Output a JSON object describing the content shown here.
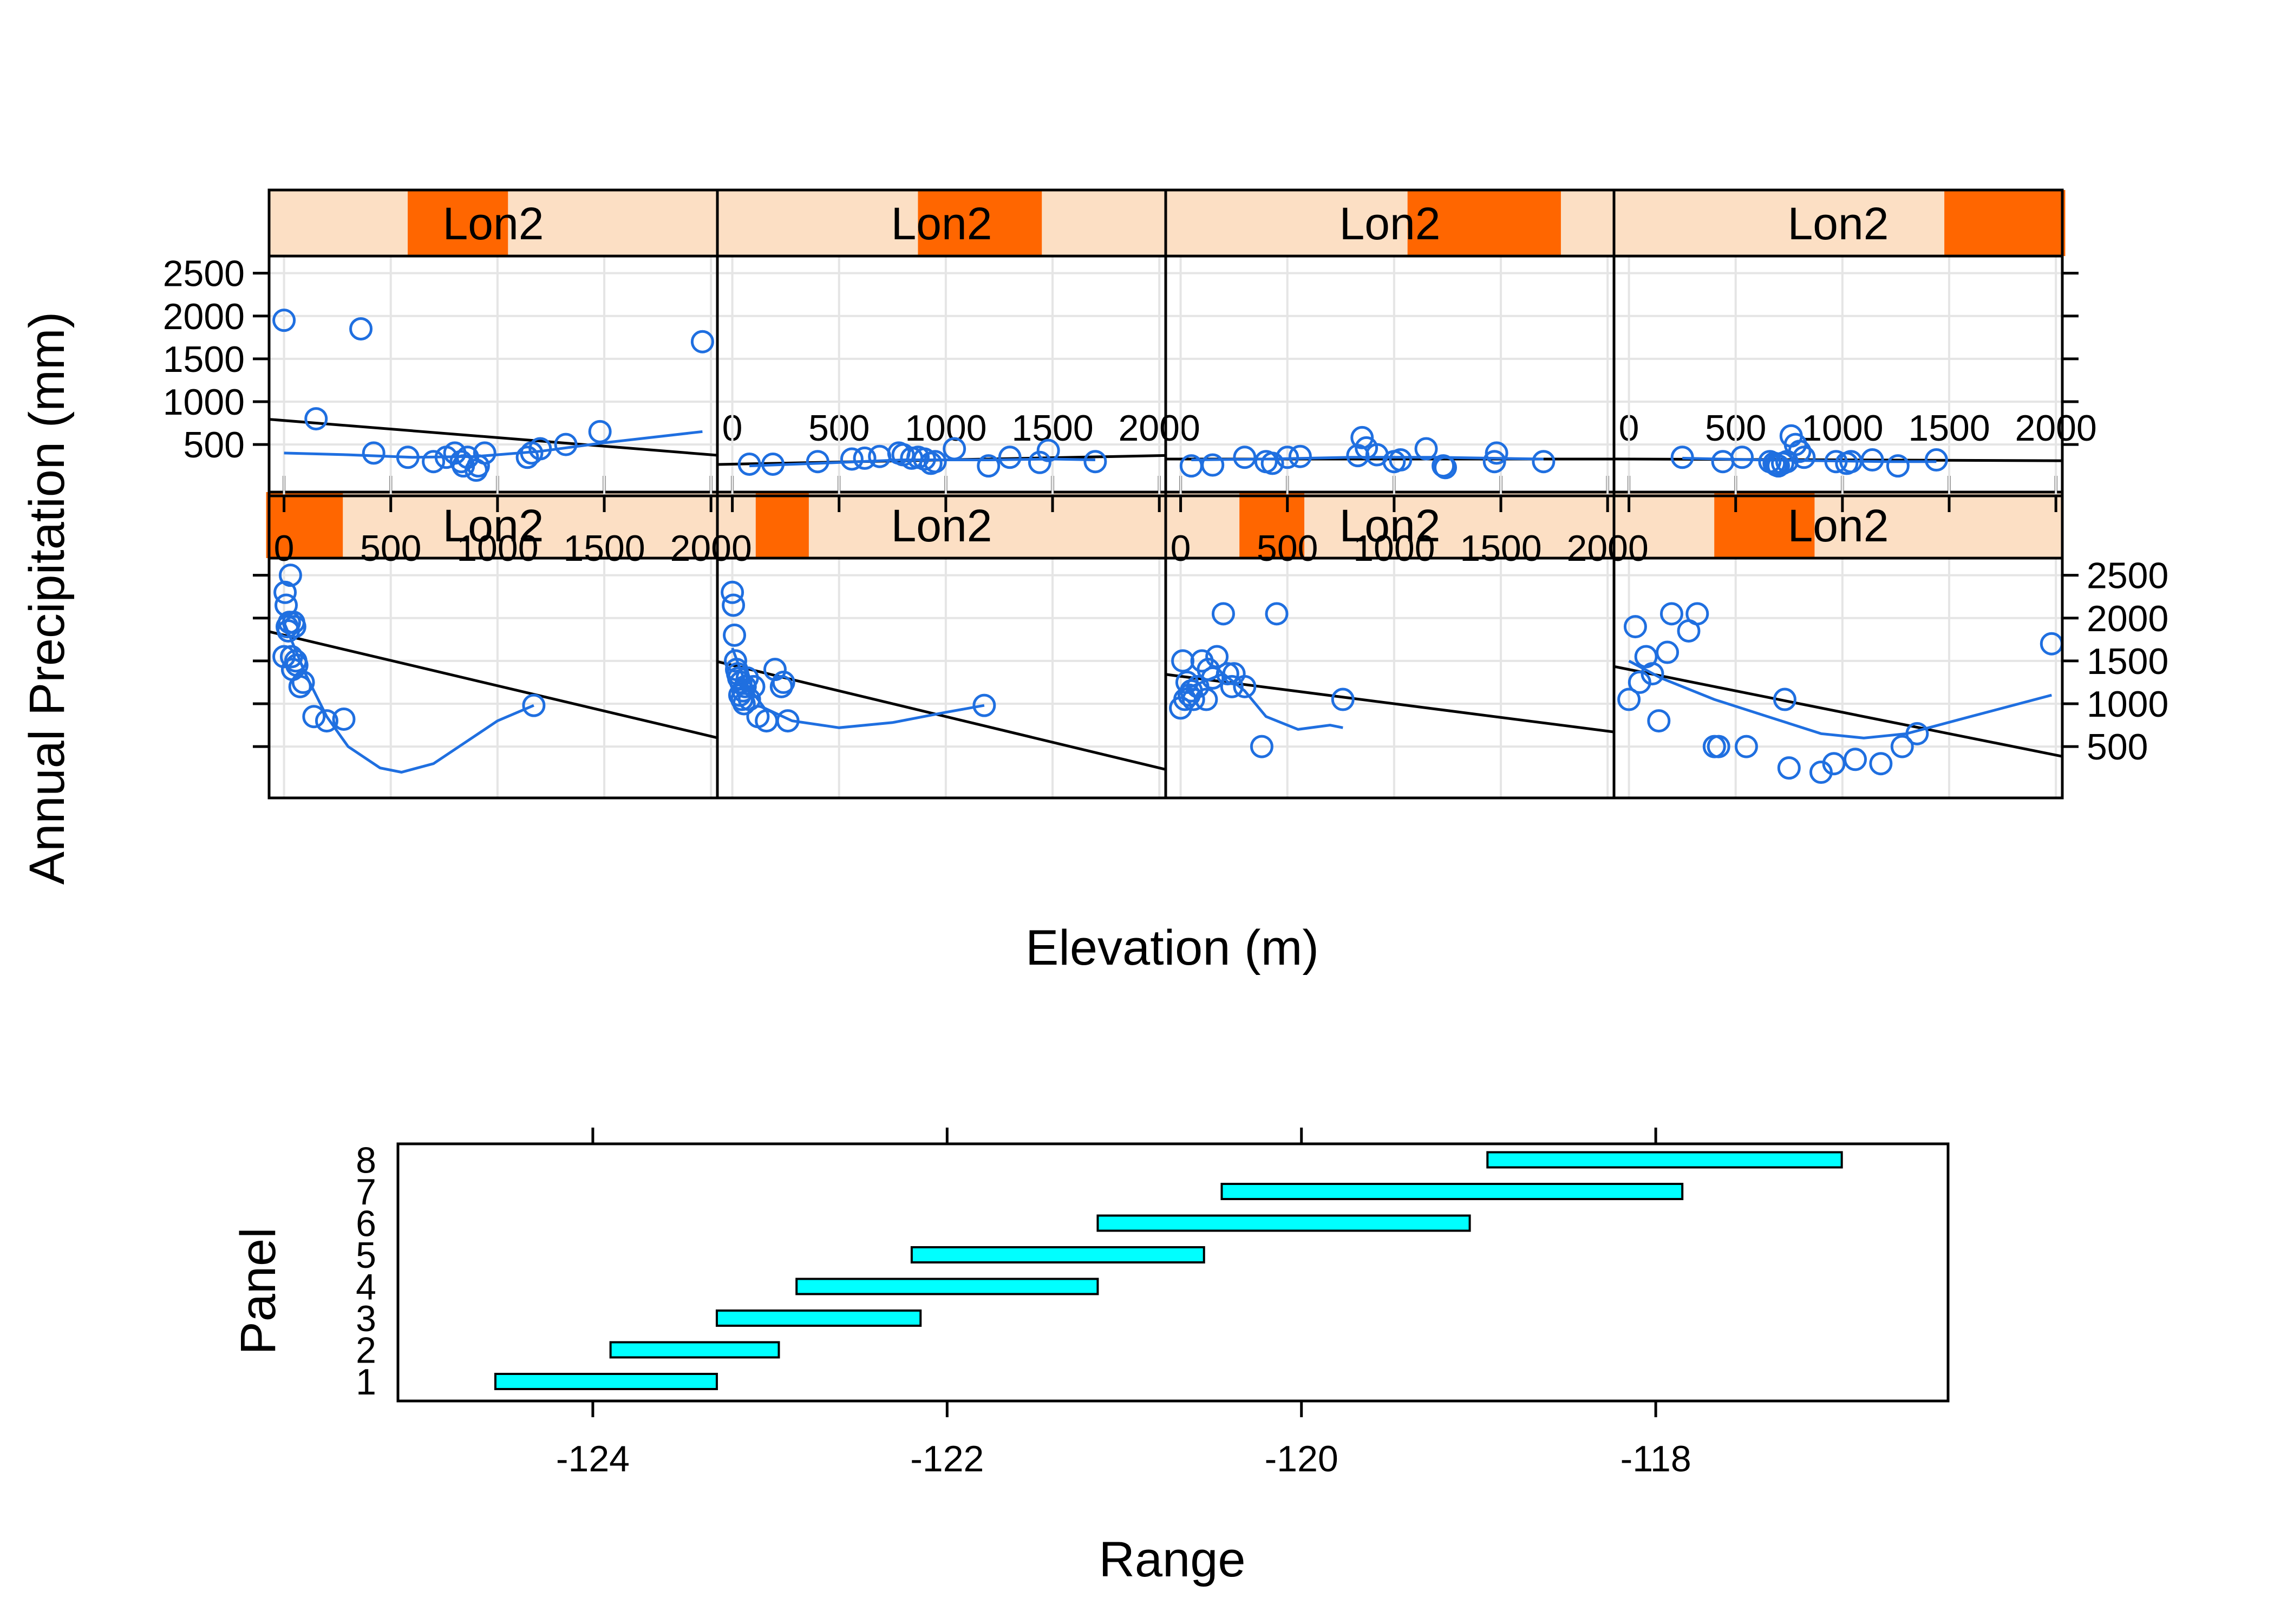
{
  "chart_data": [
    {
      "type": "scatter",
      "layout": "coplot",
      "xlabel": "Elevation (m)",
      "ylabel": "Annual Precipitation (mm)",
      "strip_label": "Lon2",
      "xlim": [
        -70,
        2030
      ],
      "ylim": [
        -100,
        2700
      ],
      "x_ticks": [
        0,
        500,
        1000,
        1500,
        2000
      ],
      "y_ticks": [
        500,
        1000,
        1500,
        2000,
        2500
      ],
      "grid": true,
      "colors": {
        "points": "#1f6fe0",
        "smooth": "#1f6fe0",
        "regression": "#000000",
        "strip_bg": "#fcdfc4",
        "strip_active": "#ff6600",
        "grid": "#e5e5e5"
      },
      "panels": [
        {
          "panel": 1,
          "lon_range": [
            -124.6,
            -123.3
          ],
          "x": [
            0,
            5,
            10,
            15,
            20,
            25,
            30,
            35,
            40,
            45,
            50,
            55,
            60,
            75,
            90,
            140,
            200,
            280,
            1170
          ],
          "y": [
            1550,
            2300,
            2150,
            1900,
            1850,
            1950,
            2500,
            1550,
            1400,
            1950,
            1900,
            1500,
            1450,
            1200,
            1250,
            850,
            800,
            820,
            980
          ],
          "regression": [
            1800,
            -0.59
          ],
          "smooth": [
            [
              0,
              1950
            ],
            [
              50,
              1650
            ],
            [
              100,
              1350
            ],
            [
              200,
              850
            ],
            [
              300,
              500
            ],
            [
              450,
              250
            ],
            [
              550,
              200
            ],
            [
              700,
              300
            ],
            [
              850,
              550
            ],
            [
              1000,
              800
            ],
            [
              1170,
              980
            ]
          ]
        },
        {
          "panel": 2,
          "lon_range": [
            -123.9,
            -123.0
          ],
          "x": [
            0,
            5,
            10,
            15,
            20,
            25,
            30,
            35,
            40,
            45,
            50,
            55,
            60,
            70,
            80,
            100,
            120,
            160,
            200,
            230,
            240,
            260,
            1180
          ],
          "y": [
            2300,
            2150,
            1800,
            1500,
            1400,
            1350,
            1300,
            1100,
            1250,
            1050,
            1150,
            1000,
            1200,
            1300,
            1050,
            1200,
            850,
            800,
            1400,
            1200,
            1250,
            800,
            980
          ],
          "regression": [
            1450,
            -0.6
          ],
          "smooth": [
            [
              0,
              1650
            ],
            [
              60,
              1250
            ],
            [
              150,
              950
            ],
            [
              280,
              800
            ],
            [
              500,
              720
            ],
            [
              750,
              780
            ],
            [
              1000,
              900
            ],
            [
              1180,
              980
            ]
          ]
        },
        {
          "panel": 3,
          "lon_range": [
            -123.3,
            -122.2
          ],
          "x": [
            0,
            10,
            20,
            30,
            40,
            50,
            60,
            80,
            100,
            120,
            130,
            150,
            170,
            200,
            220,
            240,
            250,
            300,
            380,
            450,
            760
          ],
          "y": [
            950,
            1500,
            1050,
            1250,
            1100,
            1150,
            1050,
            1200,
            1500,
            1050,
            1400,
            1300,
            1550,
            2050,
            1350,
            1200,
            1350,
            1200,
            500,
            2050,
            1050
          ],
          "regression": [
            1320,
            -0.32
          ],
          "smooth": [
            [
              0,
              1150
            ],
            [
              100,
              1250
            ],
            [
              200,
              1350
            ],
            [
              300,
              1150
            ],
            [
              400,
              850
            ],
            [
              550,
              700
            ],
            [
              700,
              750
            ],
            [
              760,
              720
            ]
          ]
        },
        {
          "panel": 4,
          "lon_range": [
            -122.85,
            -121.15
          ],
          "x": [
            0,
            30,
            50,
            80,
            110,
            140,
            180,
            200,
            280,
            320,
            400,
            420,
            550,
            730,
            750,
            900,
            960,
            1060,
            1180,
            1280,
            1350,
            1980
          ],
          "y": [
            1050,
            1900,
            1250,
            1550,
            1350,
            800,
            1600,
            2050,
            1850,
            2050,
            500,
            500,
            500,
            1050,
            250,
            200,
            300,
            350,
            300,
            500,
            650,
            1700
          ],
          "regression": [
            1400,
            -0.5
          ],
          "smooth": [
            [
              0,
              1500
            ],
            [
              150,
              1300
            ],
            [
              400,
              1050
            ],
            [
              650,
              850
            ],
            [
              900,
              650
            ],
            [
              1100,
              600
            ],
            [
              1300,
              650
            ],
            [
              1600,
              850
            ],
            [
              1980,
              1100
            ]
          ]
        },
        {
          "panel": 5,
          "lon_range": [
            -122.2,
            -120.5
          ],
          "x": [
            0,
            150,
            360,
            420,
            580,
            700,
            760,
            800,
            830,
            840,
            860,
            900,
            910,
            940,
            1140,
            1160,
            1200,
            1320,
            1480,
            1960
          ],
          "y": [
            1950,
            800,
            1850,
            400,
            350,
            300,
            350,
            400,
            300,
            250,
            350,
            200,
            250,
            400,
            350,
            400,
            450,
            500,
            650,
            1700
          ],
          "regression": [
            780,
            -0.2
          ],
          "smooth": [
            [
              0,
              400
            ],
            [
              300,
              380
            ],
            [
              600,
              350
            ],
            [
              900,
              360
            ],
            [
              1200,
              420
            ],
            [
              1500,
              520
            ],
            [
              1960,
              650
            ]
          ]
        },
        {
          "panel": 6,
          "lon_range": [
            -121.15,
            -119.05
          ],
          "x": [
            80,
            190,
            400,
            560,
            620,
            690,
            780,
            800,
            840,
            870,
            900,
            930,
            950,
            1040,
            1200,
            1300,
            1440,
            1480,
            1700
          ],
          "y": [
            270,
            270,
            300,
            330,
            340,
            360,
            400,
            380,
            340,
            350,
            330,
            280,
            300,
            450,
            250,
            350,
            290,
            430,
            300
          ],
          "regression": [
            270,
            0.05
          ],
          "smooth": [
            [
              80,
              250
            ],
            [
              400,
              280
            ],
            [
              800,
              320
            ],
            [
              1200,
              320
            ],
            [
              1500,
              330
            ],
            [
              1700,
              320
            ]
          ]
        },
        {
          "panel": 7,
          "lon_range": [
            -120.45,
            -117.85
          ],
          "x": [
            50,
            150,
            300,
            400,
            430,
            500,
            560,
            830,
            850,
            870,
            920,
            1000,
            1030,
            1150,
            1230,
            1240,
            1470,
            1480,
            1700
          ],
          "y": [
            250,
            260,
            350,
            300,
            280,
            350,
            360,
            370,
            580,
            460,
            380,
            300,
            320,
            450,
            250,
            230,
            300,
            400,
            300
          ],
          "regression": [
            330,
            0.0
          ],
          "smooth": [
            [
              50,
              320
            ],
            [
              400,
              330
            ],
            [
              800,
              350
            ],
            [
              1200,
              350
            ],
            [
              1700,
              330
            ]
          ]
        },
        {
          "panel": 8,
          "lon_range": [
            -118.95,
            -116.9
          ],
          "x": [
            250,
            440,
            530,
            660,
            680,
            690,
            700,
            720,
            740,
            760,
            780,
            800,
            820,
            970,
            1020,
            1040,
            1140,
            1260,
            1440
          ],
          "y": [
            350,
            300,
            350,
            300,
            280,
            260,
            250,
            280,
            300,
            600,
            500,
            420,
            350,
            300,
            280,
            300,
            320,
            250,
            320
          ],
          "regression": [
            330,
            -0.01
          ],
          "smooth": [
            [
              250,
              340
            ],
            [
              600,
              320
            ],
            [
              900,
              310
            ],
            [
              1200,
              300
            ],
            [
              1440,
              300
            ]
          ]
        }
      ]
    },
    {
      "type": "bar",
      "orientation": "horizontal",
      "xlabel": "Range",
      "ylabel": "Panel",
      "x_ticks": [
        -124,
        -122,
        -120,
        -118
      ],
      "y_tick_labels": [
        "1",
        "2",
        "3",
        "4",
        "5",
        "6",
        "7",
        "8"
      ],
      "xlim": [
        -125.1,
        -116.35
      ],
      "colors": {
        "fill": "#00ffff",
        "stroke": "#000000"
      },
      "intervals": [
        {
          "panel": "1",
          "range": [
            -124.55,
            -123.3
          ]
        },
        {
          "panel": "2",
          "range": [
            -123.9,
            -122.95
          ]
        },
        {
          "panel": "3",
          "range": [
            -123.3,
            -122.15
          ]
        },
        {
          "panel": "4",
          "range": [
            -122.85,
            -121.15
          ]
        },
        {
          "panel": "5",
          "range": [
            -122.2,
            -120.55
          ]
        },
        {
          "panel": "6",
          "range": [
            -121.15,
            -119.05
          ]
        },
        {
          "panel": "7",
          "range": [
            -120.45,
            -117.85
          ]
        },
        {
          "panel": "8",
          "range": [
            -118.95,
            -116.95
          ]
        }
      ]
    }
  ]
}
